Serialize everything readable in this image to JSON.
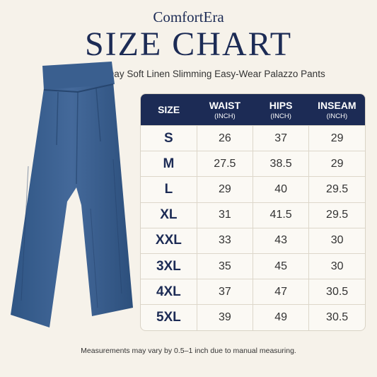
{
  "header": {
    "brand": "ComfortEra",
    "title": "SIZE CHART",
    "subtitle": "Women’s All-Day Soft Linen Slimming Easy-Wear Palazzo Pants"
  },
  "table": {
    "columns": [
      {
        "name": "SIZE"
      },
      {
        "name": "WAIST",
        "unit": "(INCH)"
      },
      {
        "name": "HIPS",
        "unit": "(INCH)"
      },
      {
        "name": "INSEAM",
        "unit": "(INCH)"
      }
    ],
    "rows": [
      [
        "S",
        26,
        37,
        29
      ],
      [
        "M",
        27.5,
        38.5,
        29
      ],
      [
        "L",
        29,
        40,
        29.5
      ],
      [
        "XL",
        31,
        41.5,
        29.5
      ],
      [
        "XXL",
        33,
        43,
        30
      ],
      [
        "3XL",
        35,
        45,
        30
      ],
      [
        "4XL",
        37,
        47,
        30.5
      ],
      [
        "5XL",
        39,
        49,
        30.5
      ]
    ]
  },
  "footnote": "Measurements may vary by 0.5–1 inch due to manual measuring."
}
